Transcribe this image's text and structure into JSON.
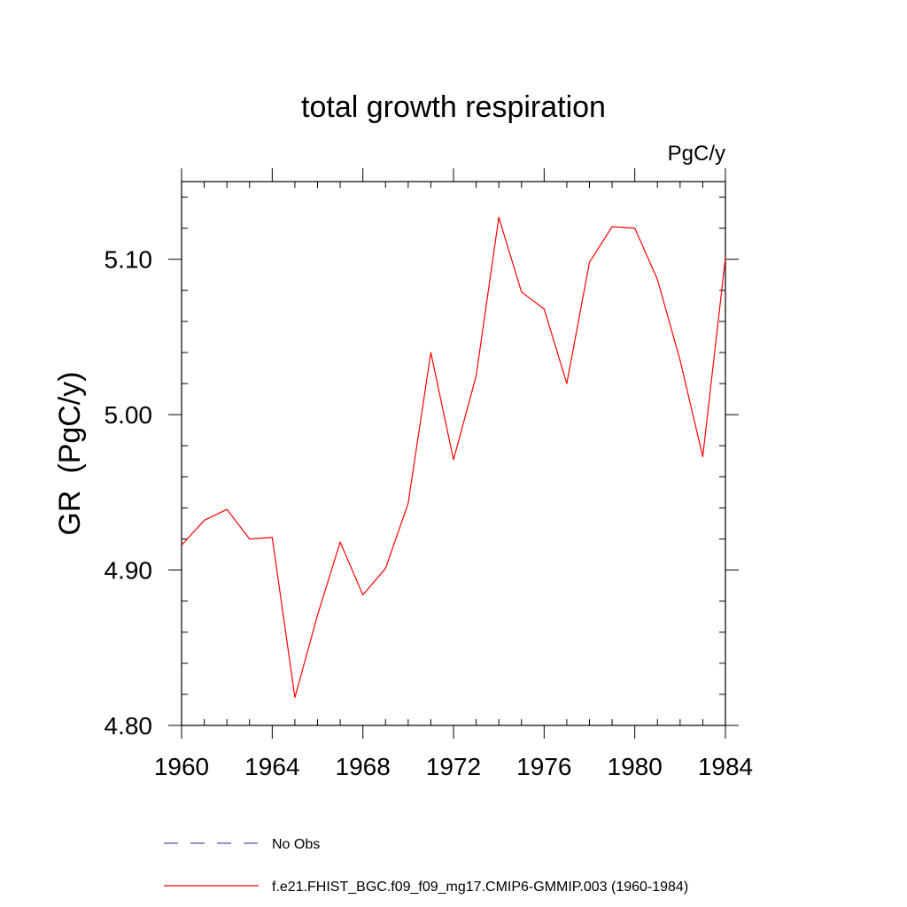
{
  "chart_data": {
    "type": "line",
    "title": "total growth respiration",
    "units_label": "PgC/y",
    "ylabel": "GR  (PgC/y)",
    "xlabel": "",
    "xlim": [
      1960,
      1984
    ],
    "ylim": [
      4.8,
      5.15
    ],
    "xticks": [
      1960,
      1964,
      1968,
      1972,
      1976,
      1980,
      1984
    ],
    "xtick_labels": [
      "1960",
      "1964",
      "1968",
      "1972",
      "1976",
      "1980",
      "1984"
    ],
    "yticks": [
      4.8,
      4.9,
      5.0,
      5.1
    ],
    "ytick_labels": [
      "4.80",
      "4.90",
      "5.00",
      "5.10"
    ],
    "x_minor_step": 1,
    "y_minor_step": 0.02,
    "grid": false,
    "legend_position": "bottom",
    "series": [
      {
        "name": "f.e21.FHIST_BGC.f09_f09_mg17.CMIP6-GMMIP.003 (1960-1984)",
        "color": "#ff0000",
        "style": "solid",
        "x": [
          1960,
          1961,
          1962,
          1963,
          1964,
          1965,
          1966,
          1967,
          1968,
          1969,
          1970,
          1971,
          1972,
          1973,
          1974,
          1975,
          1976,
          1977,
          1978,
          1979,
          1980,
          1981,
          1982,
          1983,
          1984
        ],
        "y": [
          4.916,
          4.932,
          4.939,
          4.92,
          4.921,
          4.818,
          4.871,
          4.918,
          4.884,
          4.901,
          4.943,
          5.04,
          4.971,
          5.025,
          5.127,
          5.079,
          5.068,
          5.02,
          5.098,
          5.121,
          5.12,
          5.087,
          5.035,
          4.973,
          5.101
        ]
      }
    ],
    "legend": [
      {
        "label": "No Obs",
        "color": "#5555aa",
        "style": "dashed"
      },
      {
        "label": "f.e21.FHIST_BGC.f09_f09_mg17.CMIP6-GMMIP.003 (1960-1984)",
        "color": "#ff0000",
        "style": "solid"
      }
    ]
  }
}
